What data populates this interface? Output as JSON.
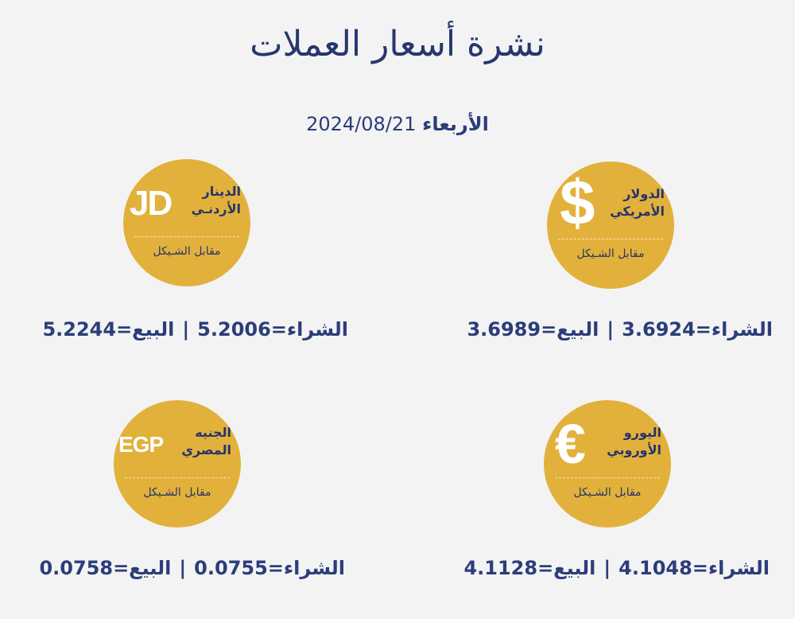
{
  "title": "نشرة أسعار العملات",
  "date": {
    "day": "الأربعاء",
    "value": "2024/08/21"
  },
  "colors": {
    "background": "#f3f3f3",
    "coin": "#e2b13c",
    "text": "#2b3d7a"
  },
  "labels": {
    "buy": "الشراء=",
    "sell": "البيع=",
    "separator": "|",
    "versus": "مقابل الشـيكل"
  },
  "currencies": [
    {
      "symbol": "$",
      "name1": "الدولار",
      "name2": "الأمريكي",
      "buy": "3.6924",
      "sell": "3.6989"
    },
    {
      "symbol": "JD",
      "name1": "الدينار",
      "name2": "الأردنـي",
      "buy": "5.2006",
      "sell": "5.2244"
    },
    {
      "symbol": "€",
      "name1": "اليورو",
      "name2": "الأوروبي",
      "buy": "4.1048",
      "sell": "4.1128"
    },
    {
      "symbol": "EGP",
      "name1": "الجنيه",
      "name2": "المصري",
      "buy": "0.0755",
      "sell": "0.0758"
    }
  ]
}
